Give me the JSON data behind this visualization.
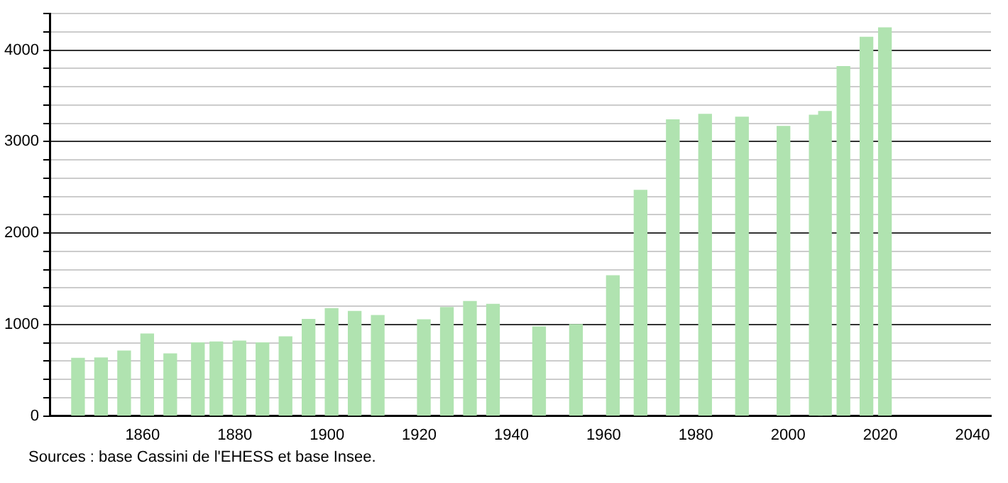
{
  "chart_data": {
    "type": "bar",
    "x": [
      1846,
      1851,
      1856,
      1861,
      1866,
      1872,
      1876,
      1881,
      1886,
      1891,
      1896,
      1901,
      1906,
      1911,
      1921,
      1926,
      1931,
      1936,
      1946,
      1954,
      1962,
      1968,
      1975,
      1982,
      1990,
      1999,
      2006,
      2008,
      2012,
      2017,
      2021
    ],
    "values": [
      630,
      634,
      711,
      897,
      680,
      799,
      809,
      820,
      799,
      866,
      1057,
      1175,
      1144,
      1098,
      1052,
      1186,
      1253,
      1222,
      975,
      1000,
      1533,
      2467,
      3239,
      3299,
      3269,
      3168,
      3289,
      3330,
      3822,
      4142,
      4244
    ],
    "color": "#b0e3b0",
    "xlim": [
      1840,
      2044
    ],
    "xticks": [
      1860,
      1880,
      1900,
      1920,
      1940,
      1960,
      1980,
      2000,
      2020,
      2040
    ],
    "ylim": [
      0,
      4400
    ],
    "yticks": [
      0,
      {
        "value": 200,
        "label": null
      },
      {
        "value": 400,
        "label": null
      },
      {
        "value": 600,
        "label": null
      },
      {
        "value": 800,
        "label": null
      },
      1000,
      {
        "value": 1200,
        "label": null
      },
      {
        "value": 1400,
        "label": null
      },
      {
        "value": 1600,
        "label": null
      },
      {
        "value": 1800,
        "label": null
      },
      2000,
      {
        "value": 2200,
        "label": null
      },
      {
        "value": 2400,
        "label": null
      },
      {
        "value": 2600,
        "label": null
      },
      {
        "value": 2800,
        "label": null
      },
      3000,
      {
        "value": 3200,
        "label": null
      },
      {
        "value": 3400,
        "label": null
      },
      {
        "value": 3600,
        "label": null
      },
      {
        "value": 3800,
        "label": null
      },
      4000,
      {
        "value": 4200,
        "label": null
      },
      {
        "value": 4400,
        "label": null
      }
    ],
    "grid": "y",
    "legend": false,
    "annotations": [
      "Sources : base Cassini de l'EHESS et base Insee."
    ]
  }
}
